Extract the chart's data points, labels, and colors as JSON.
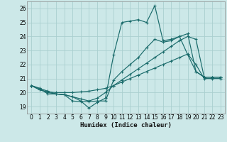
{
  "xlabel": "Humidex (Indice chaleur)",
  "ylabel": "",
  "background_color": "#cce8e8",
  "grid_color": "#aacfcf",
  "line_color": "#1a6b6b",
  "xlim": [
    -0.5,
    23.5
  ],
  "ylim": [
    18.5,
    26.5
  ],
  "xticks": [
    0,
    1,
    2,
    3,
    4,
    5,
    6,
    7,
    8,
    9,
    10,
    11,
    12,
    13,
    14,
    15,
    16,
    17,
    18,
    19,
    20,
    21,
    22,
    23
  ],
  "yticks": [
    19,
    20,
    21,
    22,
    23,
    24,
    25,
    26
  ],
  "line1_x": [
    0,
    1,
    2,
    3,
    4,
    5,
    6,
    7,
    8,
    9,
    10,
    11,
    12,
    13,
    14,
    15,
    16,
    17,
    18,
    19,
    20,
    21,
    22,
    23
  ],
  "line1_y": [
    20.5,
    20.3,
    20.1,
    19.9,
    19.85,
    19.7,
    19.55,
    19.4,
    19.6,
    20.0,
    20.5,
    20.9,
    21.3,
    21.7,
    22.1,
    22.5,
    22.9,
    23.3,
    23.7,
    24.0,
    23.8,
    21.1,
    21.1,
    21.1
  ],
  "line2_x": [
    0,
    1,
    2,
    3,
    4,
    5,
    6,
    7,
    8,
    9,
    10,
    11,
    12,
    13,
    14,
    15,
    16,
    17,
    18,
    19,
    20,
    21,
    22,
    23
  ],
  "line2_y": [
    20.5,
    20.2,
    20.0,
    19.9,
    19.85,
    19.7,
    19.4,
    18.9,
    19.3,
    19.6,
    22.7,
    25.0,
    25.1,
    25.2,
    25.0,
    26.2,
    23.7,
    23.8,
    24.0,
    24.2,
    21.5,
    21.1,
    21.1,
    21.1
  ],
  "line3_x": [
    0,
    1,
    2,
    3,
    4,
    5,
    6,
    7,
    8,
    9,
    10,
    11,
    12,
    13,
    14,
    15,
    16,
    17,
    18,
    19,
    20,
    21,
    22,
    23
  ],
  "line3_y": [
    20.5,
    20.3,
    19.9,
    19.9,
    19.85,
    19.4,
    19.35,
    19.35,
    19.4,
    19.4,
    20.9,
    21.5,
    22.0,
    22.5,
    23.2,
    23.8,
    23.6,
    23.7,
    24.0,
    22.7,
    21.5,
    21.1,
    21.1,
    21.1
  ],
  "line4_x": [
    0,
    1,
    2,
    3,
    4,
    5,
    6,
    7,
    8,
    9,
    10,
    11,
    12,
    13,
    14,
    15,
    16,
    17,
    18,
    19,
    20,
    21,
    22,
    23
  ],
  "line4_y": [
    20.5,
    20.2,
    20.05,
    20.0,
    20.0,
    20.0,
    20.05,
    20.1,
    20.2,
    20.3,
    20.5,
    20.75,
    21.0,
    21.25,
    21.5,
    21.75,
    22.0,
    22.25,
    22.5,
    22.75,
    22.0,
    21.0,
    21.0,
    21.0
  ]
}
